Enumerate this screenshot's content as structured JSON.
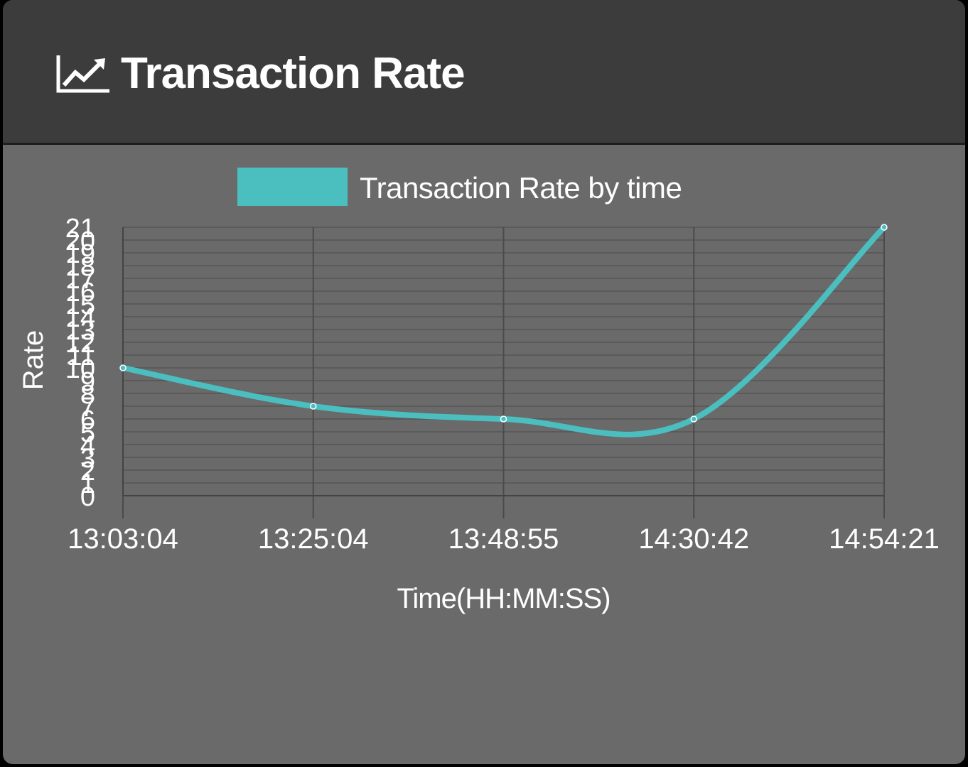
{
  "panel": {
    "title": "Transaction Rate",
    "icon": "line-chart-icon"
  },
  "colors": {
    "header_bg": "#3c3c3c",
    "panel_bg": "#6a6a6a",
    "series": "#4bbfc0",
    "grid": "#5a5a5a",
    "text": "#ffffff"
  },
  "chart_data": {
    "type": "line",
    "title": "",
    "xlabel": "Time(HH:MM:SS)",
    "ylabel": "Rate",
    "categories": [
      "13:03:04",
      "13:25:04",
      "13:48:55",
      "14:30:42",
      "14:54:21"
    ],
    "series": [
      {
        "name": "Transaction Rate by time",
        "values": [
          10,
          7,
          6,
          6,
          21
        ]
      }
    ],
    "yticks": [
      0,
      1,
      2,
      3,
      4,
      5,
      6,
      7,
      8,
      9,
      10,
      11,
      12,
      13,
      14,
      15,
      16,
      17,
      18,
      19,
      20,
      21
    ],
    "ylim": [
      0,
      21
    ],
    "grid": true,
    "legend": "top-center"
  }
}
